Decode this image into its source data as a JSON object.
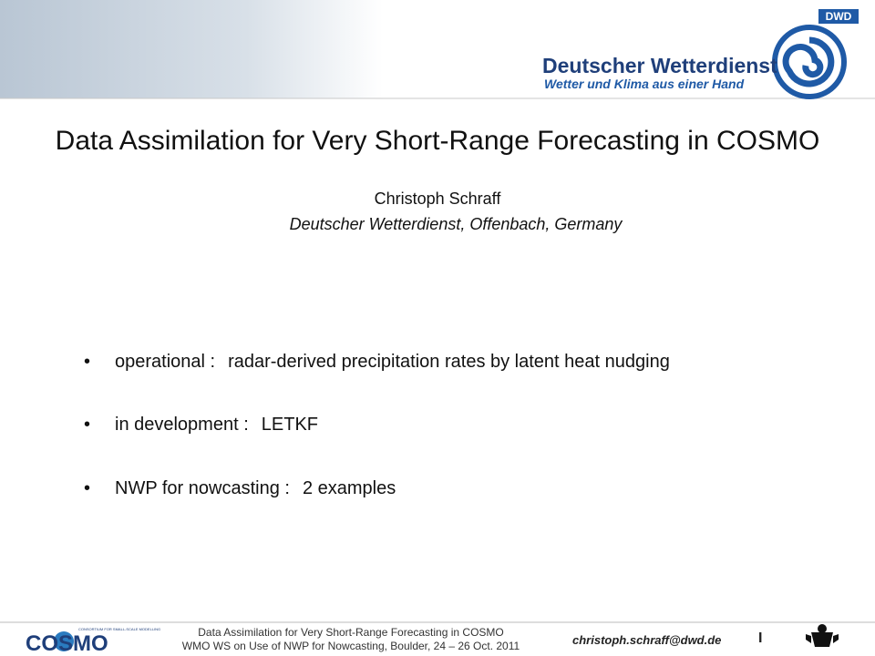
{
  "header": {
    "logo_abbr": "DWD",
    "logo_name": "Deutscher Wetterdienst",
    "logo_tagline": "Wetter und Klima aus einer Hand"
  },
  "title": "Data Assimilation for Very Short-Range Forecasting in COSMO",
  "author": "Christoph Schraff",
  "affiliation": "Deutscher Wetterdienst, Offenbach, Germany",
  "bullets": [
    {
      "label": "operational :",
      "text": "radar-derived precipitation rates by latent heat nudging"
    },
    {
      "label": "in development :",
      "text": "LETKF"
    },
    {
      "label": "NWP for nowcasting :",
      "text": "2 examples"
    }
  ],
  "footer": {
    "logo": "COSMO",
    "logo_small": "CONSORTIUM FOR SMALL-SCALE MODELLING",
    "line1": "Data Assimilation for Very Short-Range Forecasting in COSMO",
    "line2": "WMO WS on Use of NWP for Nowcasting, Boulder, 24 – 26 Oct. 2011",
    "email": "christoph.schraff@dwd.de",
    "page": "I"
  }
}
